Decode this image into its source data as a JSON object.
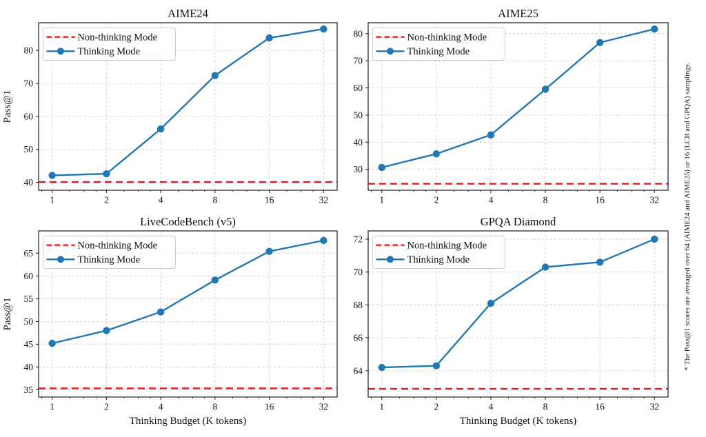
{
  "figure": {
    "ylabel": "Pass@1",
    "xlabel": "Thinking Budget (K tokens)",
    "note": "* The Pass@1 scores are averaged over 64 (AIME24 and AIME25) or 16 (LCB and GPQA) samplings.",
    "legend": {
      "non_thinking_label": "Non-thinking Mode",
      "thinking_label": "Thinking Mode"
    },
    "colors": {
      "thinking": "#1f77b4",
      "non_thinking": "#f01414",
      "grid": "#cccccc",
      "spine": "#262626",
      "text": "#111111",
      "legend_border": "#cccccc",
      "legend_bg": "#ffffff"
    }
  },
  "chart_data": [
    {
      "type": "line",
      "title": "AIME24",
      "x_scale": "log2",
      "x": [
        1,
        2,
        4,
        8,
        16,
        32
      ],
      "xlim_log2": [
        -0.25,
        5.25
      ],
      "series": [
        {
          "name": "Thinking Mode",
          "values": [
            42.1,
            42.6,
            56.2,
            72.4,
            83.8,
            86.5
          ]
        }
      ],
      "baseline": {
        "name": "Non-thinking Mode",
        "value": 40.1
      },
      "yticks": [
        40,
        50,
        60,
        70,
        80
      ],
      "ylim": [
        37.6,
        88.4
      ],
      "grid": true,
      "legend_position": "upper left",
      "show_ylabel": true,
      "show_xlabel": false
    },
    {
      "type": "line",
      "title": "AIME25",
      "x_scale": "log2",
      "x": [
        1,
        2,
        4,
        8,
        16,
        32
      ],
      "xlim_log2": [
        -0.25,
        5.25
      ],
      "series": [
        {
          "name": "Thinking Mode",
          "values": [
            30.7,
            35.7,
            42.7,
            59.5,
            76.7,
            81.7
          ]
        }
      ],
      "baseline": {
        "name": "Non-thinking Mode",
        "value": 24.7
      },
      "yticks": [
        30,
        40,
        50,
        60,
        70,
        80
      ],
      "ylim": [
        22.3,
        84.0
      ],
      "grid": true,
      "legend_position": "upper left",
      "show_ylabel": false,
      "show_xlabel": false
    },
    {
      "type": "line",
      "title": "LiveCodeBench (v5)",
      "x_scale": "log2",
      "x": [
        1,
        2,
        4,
        8,
        16,
        32
      ],
      "xlim_log2": [
        -0.25,
        5.25
      ],
      "series": [
        {
          "name": "Thinking Mode",
          "values": [
            45.2,
            48.0,
            52.1,
            59.1,
            65.4,
            67.8
          ]
        }
      ],
      "baseline": {
        "name": "Non-thinking Mode",
        "value": 35.3
      },
      "yticks": [
        35,
        40,
        45,
        50,
        55,
        60,
        65
      ],
      "ylim": [
        33.4,
        69.9
      ],
      "grid": true,
      "legend_position": "upper left",
      "show_ylabel": true,
      "show_xlabel": true
    },
    {
      "type": "line",
      "title": "GPQA Diamond",
      "x_scale": "log2",
      "x": [
        1,
        2,
        4,
        8,
        16,
        32
      ],
      "xlim_log2": [
        -0.25,
        5.25
      ],
      "series": [
        {
          "name": "Thinking Mode",
          "values": [
            64.2,
            64.3,
            68.1,
            70.3,
            70.6,
            72.0
          ]
        }
      ],
      "baseline": {
        "name": "Non-thinking Mode",
        "value": 62.9
      },
      "yticks": [
        64,
        66,
        68,
        70,
        72
      ],
      "ylim": [
        62.4,
        72.5
      ],
      "grid": true,
      "legend_position": "upper left",
      "show_ylabel": false,
      "show_xlabel": true
    }
  ]
}
